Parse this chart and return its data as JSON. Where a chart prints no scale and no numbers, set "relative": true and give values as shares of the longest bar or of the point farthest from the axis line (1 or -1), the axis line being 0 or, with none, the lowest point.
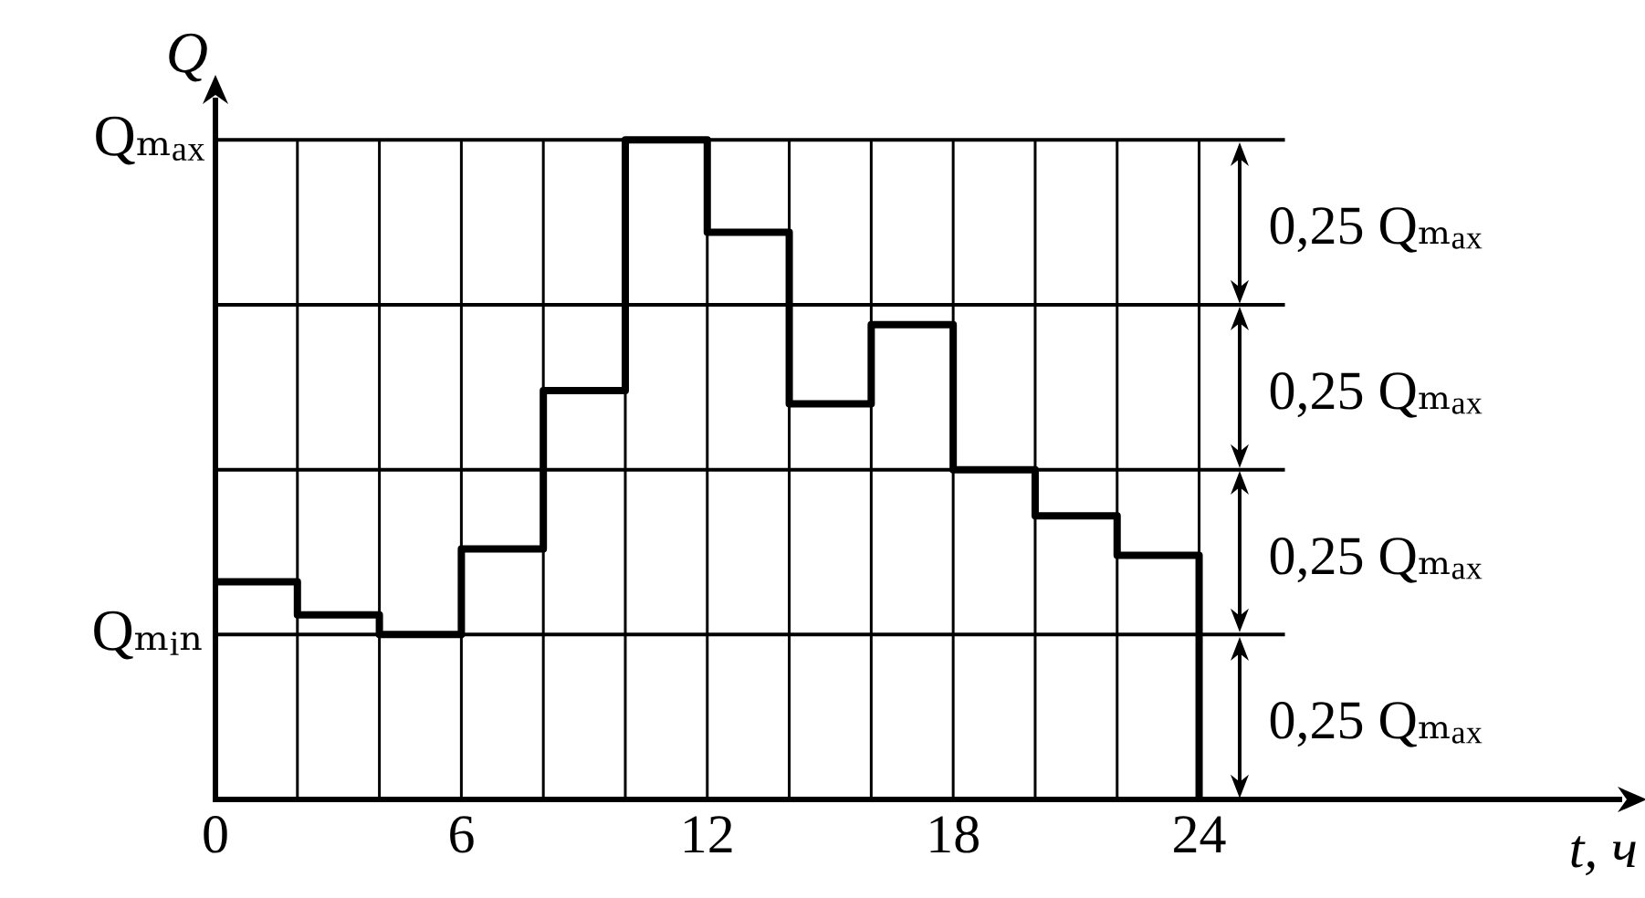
{
  "chart_data": {
    "type": "step",
    "ylabel": "Q",
    "xlabel": "t, ч",
    "x": [
      0,
      2,
      4,
      6,
      8,
      10,
      12,
      14,
      16,
      18,
      20,
      22,
      24
    ],
    "series": [
      {
        "color": "#000000",
        "values": [
          0.33,
          0.28,
          0.25,
          0.38,
          0.62,
          1,
          0.86,
          0.6,
          0.72,
          0.5,
          0.43,
          0.37,
          0
        ]
      }
    ],
    "xlim": [
      0,
      34.3
    ],
    "relative": true,
    "xticks": [
      0,
      {
        "value": 2,
        "label": null
      },
      {
        "value": 4,
        "label": null
      },
      6,
      {
        "value": 8,
        "label": null
      },
      {
        "value": 10,
        "label": null
      },
      12,
      {
        "value": 14,
        "label": null
      },
      {
        "value": 16,
        "label": null
      },
      18,
      {
        "value": 20,
        "label": null
      },
      {
        "value": 22,
        "label": null
      },
      24
    ],
    "ref_lines": [
      {
        "axis": "y",
        "value": 1,
        "label": "Qₘₐₓ",
        "color": "#000000"
      },
      {
        "axis": "y",
        "value": 0.75,
        "label": null,
        "color": "#000000"
      },
      {
        "axis": "y",
        "value": 0.5,
        "label": null,
        "color": "#000000"
      },
      {
        "axis": "y",
        "value": 0.25,
        "label": "Qₘᵢₙ",
        "color": "#000000"
      }
    ],
    "grid": "x",
    "annotations": [
      "0,25 Qₘₐₓ",
      "0,25 Qₘₐₓ",
      "0,25 Qₘₐₓ",
      "0,25 Qₘₐₓ"
    ]
  }
}
